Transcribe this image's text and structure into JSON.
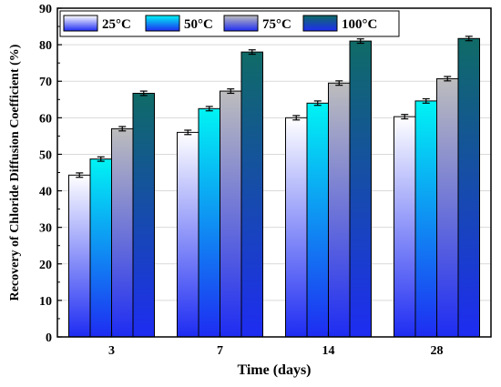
{
  "chart_data": {
    "type": "bar",
    "title": "",
    "xlabel": "Time (days)",
    "ylabel": "Recovery of Chloride Diffusion Coefficient (%)",
    "categories": [
      "3",
      "7",
      "14",
      "28"
    ],
    "ylim": [
      0,
      90
    ],
    "yticks": [
      0,
      10,
      20,
      30,
      40,
      50,
      60,
      70,
      80,
      90
    ],
    "grid": true,
    "legend_position": "top",
    "series": [
      {
        "name": "25°C",
        "values": [
          44.3,
          56.0,
          60.0,
          60.3
        ],
        "errors": [
          0.6,
          0.6,
          0.6,
          0.6
        ],
        "color_top": "#ffffff",
        "color_bottom": "#1e2cf2"
      },
      {
        "name": "50°C",
        "values": [
          48.7,
          62.5,
          64.0,
          64.6
        ],
        "errors": [
          0.6,
          0.6,
          0.6,
          0.6
        ],
        "color_top": "#00f4f4",
        "color_bottom": "#1e2cf2"
      },
      {
        "name": "75°C",
        "values": [
          57.0,
          67.3,
          69.5,
          70.7
        ],
        "errors": [
          0.6,
          0.6,
          0.6,
          0.6
        ],
        "color_top": "#bdbdbd",
        "color_bottom": "#1e2cf2"
      },
      {
        "name": "100°C",
        "values": [
          66.7,
          78.0,
          81.0,
          81.7
        ],
        "errors": [
          0.6,
          0.6,
          0.6,
          0.6
        ],
        "color_top": "#0f6b66",
        "color_bottom": "#1e2cf2"
      }
    ]
  }
}
